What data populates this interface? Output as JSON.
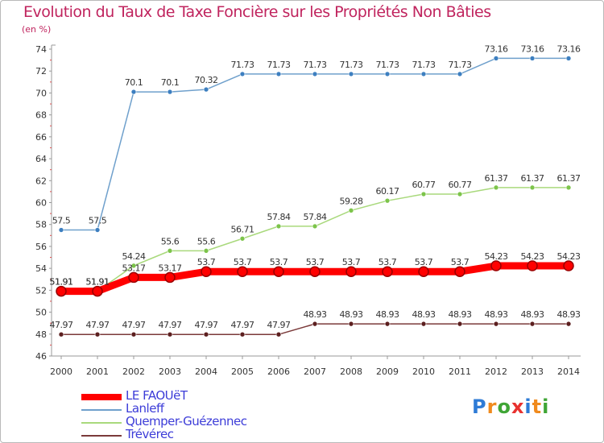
{
  "title": "Evolution du Taux de Taxe Foncière sur les Propriétés Non Bâties",
  "unit_label": "(en %)",
  "logo": {
    "letters": [
      "P",
      "r",
      "o",
      "x",
      "i",
      "t",
      "i"
    ],
    "colors": [
      "#2e7bd6",
      "#f08a1d",
      "#3fa535",
      "#e8312f",
      "#2e7bd6",
      "#f08a1d",
      "#3fa535"
    ]
  },
  "chart_data": {
    "type": "line",
    "title": "Evolution du Taux de Taxe Foncière sur les Propriétés Non Bâties",
    "xlabel": "",
    "ylabel": "(en %)",
    "x": [
      2000,
      2001,
      2002,
      2003,
      2004,
      2005,
      2006,
      2007,
      2008,
      2009,
      2010,
      2011,
      2012,
      2013,
      2014
    ],
    "ylim": [
      46,
      74
    ],
    "yticks": [
      46,
      48,
      50,
      52,
      54,
      56,
      58,
      60,
      62,
      64,
      66,
      68,
      70,
      72,
      74
    ],
    "grid": false,
    "legend_position": "bottom-left",
    "series": [
      {
        "name": "LE FAOUëT",
        "color": "#ff0000",
        "marker_color": "#cc0000",
        "thick": true,
        "values": [
          51.91,
          51.91,
          53.17,
          53.17,
          53.7,
          53.7,
          53.7,
          53.7,
          53.7,
          53.7,
          53.7,
          53.7,
          54.23,
          54.23,
          54.23
        ],
        "labels": [
          "51.91",
          "51.91",
          "53.17",
          "53.17",
          "53.7",
          "53.7",
          "53.7",
          "53.7",
          "53.7",
          "53.7",
          "53.7",
          "53.7",
          "54.23",
          "54.23",
          "54.23"
        ]
      },
      {
        "name": "Lanleff",
        "color": "#6fa0cc",
        "marker_color": "#3d7fc0",
        "thick": false,
        "values": [
          57.5,
          57.5,
          70.1,
          70.1,
          70.32,
          71.73,
          71.73,
          71.73,
          71.73,
          71.73,
          71.73,
          71.73,
          73.16,
          73.16,
          73.16
        ],
        "labels": [
          "57.5",
          "57.5",
          "70.1",
          "70.1",
          "70.32",
          "71.73",
          "71.73",
          "71.73",
          "71.73",
          "71.73",
          "71.73",
          "71.73",
          "73.16",
          "73.16",
          "73.16"
        ]
      },
      {
        "name": "Quemper-Guézennec",
        "color": "#a9d97c",
        "marker_color": "#7cc44a",
        "thick": false,
        "values": [
          51.91,
          51.91,
          54.24,
          55.6,
          55.6,
          56.71,
          57.84,
          57.84,
          59.28,
          60.17,
          60.77,
          60.77,
          61.37,
          61.37,
          61.37
        ],
        "labels": [
          "51.91",
          "51.91",
          "54.24",
          "55.6",
          "55.6",
          "56.71",
          "57.84",
          "57.84",
          "59.28",
          "60.17",
          "60.77",
          "60.77",
          "61.37",
          "61.37",
          "61.37"
        ]
      },
      {
        "name": "Trévérec",
        "color": "#7b3a3a",
        "marker_color": "#5c1f1f",
        "thick": false,
        "values": [
          47.97,
          47.97,
          47.97,
          47.97,
          47.97,
          47.97,
          47.97,
          48.93,
          48.93,
          48.93,
          48.93,
          48.93,
          48.93,
          48.93,
          48.93
        ],
        "labels": [
          "47.97",
          "47.97",
          "47.97",
          "47.97",
          "47.97",
          "47.97",
          "47.97",
          "48.93",
          "48.93",
          "48.93",
          "48.93",
          "48.93",
          "48.93",
          "48.93",
          "48.93"
        ]
      }
    ]
  }
}
